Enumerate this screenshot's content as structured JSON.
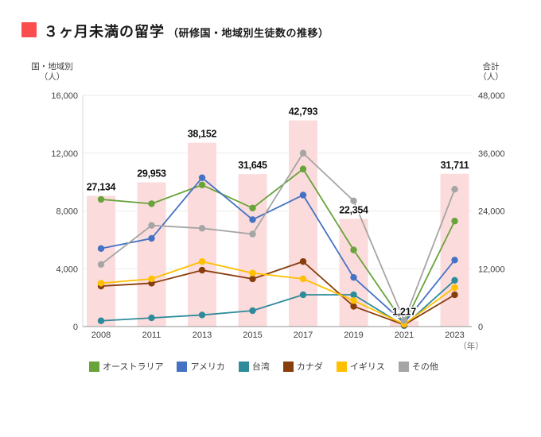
{
  "header": {
    "title": "３ヶ月未満の留学",
    "subtitle": "（研修国・地域別生徒数の推移）",
    "accent_color": "#FB4D4D"
  },
  "chart_data": {
    "type": "bar+line combo",
    "title": "３ヶ月未満の留学（研修国・地域別生徒数の推移）",
    "categories": [
      "2008",
      "2011",
      "2013",
      "2015",
      "2017",
      "2019",
      "2021",
      "2023"
    ],
    "x_unit": "（年）",
    "left_axis": {
      "title_line1": "国・地域別",
      "title_line2": "（人）",
      "min": 0,
      "max": 16000,
      "ticks": [
        {
          "value": 0,
          "label": "0"
        },
        {
          "value": 4000,
          "label": "4,000"
        },
        {
          "value": 8000,
          "label": "8,000"
        },
        {
          "value": 12000,
          "label": "12,000"
        },
        {
          "value": 16000,
          "label": "16,000"
        }
      ]
    },
    "right_axis": {
      "title_line1": "合計",
      "title_line2": "（人）",
      "min": 0,
      "max": 48000,
      "ticks": [
        {
          "value": 0,
          "label": "0"
        },
        {
          "value": 12000,
          "label": "12,000"
        },
        {
          "value": 24000,
          "label": "24,000"
        },
        {
          "value": 36000,
          "label": "36,000"
        },
        {
          "value": 48000,
          "label": "48,000"
        }
      ]
    },
    "bars": {
      "name": "合計",
      "axis": "right",
      "color": "#FBDBDB",
      "values": [
        27134,
        29953,
        38152,
        31645,
        42793,
        22354,
        1217,
        31711
      ],
      "labels": [
        "27,134",
        "29,953",
        "38,152",
        "31,645",
        "42,793",
        "22,354",
        "1,217",
        "31,711"
      ]
    },
    "series": [
      {
        "name": "オーストラリア",
        "color": "#69A33B",
        "axis": "left",
        "values": [
          8800,
          8500,
          9800,
          8200,
          10900,
          5300,
          200,
          7300
        ]
      },
      {
        "name": "アメリカ",
        "color": "#4472C4",
        "axis": "left",
        "values": [
          5400,
          6100,
          10300,
          7400,
          9100,
          3400,
          250,
          4600
        ]
      },
      {
        "name": "台湾",
        "color": "#2E8B9B",
        "axis": "left",
        "values": [
          400,
          600,
          800,
          1100,
          2200,
          2200,
          60,
          3200
        ]
      },
      {
        "name": "カナダ",
        "color": "#883D0D",
        "axis": "left",
        "values": [
          2800,
          3000,
          3900,
          3300,
          4500,
          1400,
          120,
          2200
        ]
      },
      {
        "name": "イギリス",
        "color": "#FFC000",
        "axis": "left",
        "values": [
          3000,
          3300,
          4500,
          3700,
          3300,
          1800,
          160,
          2700
        ]
      },
      {
        "name": "その他",
        "color": "#A5A5A5",
        "axis": "left",
        "values": [
          4300,
          7000,
          6800,
          6400,
          12000,
          8700,
          420,
          9500
        ]
      }
    ],
    "legend_position": "bottom",
    "grid": "horizontal"
  }
}
